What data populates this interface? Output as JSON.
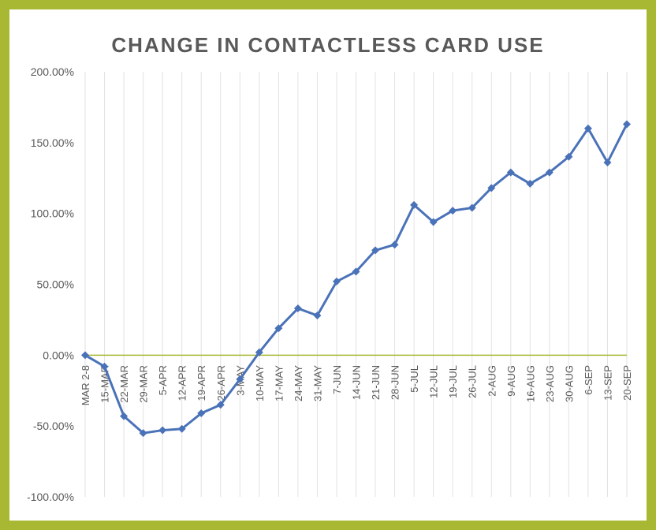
{
  "chart_data": {
    "type": "line",
    "title": "CHANGE IN CONTACTLESS CARD USE",
    "xlabel": "",
    "ylabel": "",
    "categories": [
      "MAR 2-8",
      "15-MAR",
      "22-MAR",
      "29-MAR",
      "5-APR",
      "12-APR",
      "19-APR",
      "26-APR",
      "3-MAY",
      "10-MAY",
      "17-MAY",
      "24-MAY",
      "31-MAY",
      "7-JUN",
      "14-JUN",
      "21-JUN",
      "28-JUN",
      "5-JUL",
      "12-JUL",
      "19-JUL",
      "26-JUL",
      "2-AUG",
      "9-AUG",
      "16-AUG",
      "23-AUG",
      "30-AUG",
      "6-SEP",
      "13-SEP",
      "20-SEP"
    ],
    "series": [
      {
        "values": [
          0,
          -8,
          -43,
          -55,
          -53,
          -52,
          -41,
          -35,
          -17,
          2,
          19,
          33,
          28,
          52,
          59,
          74,
          78,
          106,
          94,
          102,
          104,
          118,
          129,
          121,
          129,
          140,
          160,
          136,
          163
        ]
      }
    ],
    "ylim": [
      -100,
      200
    ],
    "yticks": [
      -100,
      -50,
      0,
      50,
      100,
      150,
      200
    ],
    "ytick_labels": [
      "-100.00%",
      "-50.00%",
      "0.00%",
      "50.00%",
      "100.00%",
      "150.00%",
      "200.00%"
    ],
    "grid": "vertical",
    "legend": "none",
    "colors": {
      "line": "#4a72b8",
      "zero_line": "#a8b832",
      "grid": "#e2e2e2",
      "border": "#a8b832"
    }
  }
}
